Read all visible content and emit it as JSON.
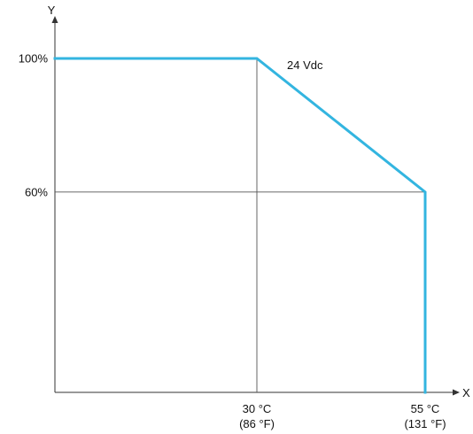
{
  "chart_data": {
    "type": "line",
    "xlabel": "X",
    "ylabel": "Y",
    "x_ticks": [
      {
        "value": 30,
        "line1": "30 °C",
        "line2": "(86 °F)"
      },
      {
        "value": 55,
        "line1": "55 °C",
        "line2": "(131 °F)"
      }
    ],
    "y_ticks": [
      {
        "value": 100,
        "label": "100%"
      },
      {
        "value": 60,
        "label": "60%"
      }
    ],
    "series": [
      {
        "name": "24 Vdc",
        "color": "#33b5e0",
        "points": [
          {
            "x": 0,
            "y": 100
          },
          {
            "x": 30,
            "y": 100
          },
          {
            "x": 55,
            "y": 60
          },
          {
            "x": 55,
            "y": 0
          }
        ]
      }
    ],
    "xlim": [
      0,
      62
    ],
    "ylim": [
      0,
      120
    ],
    "grid": false,
    "legend": "none"
  }
}
